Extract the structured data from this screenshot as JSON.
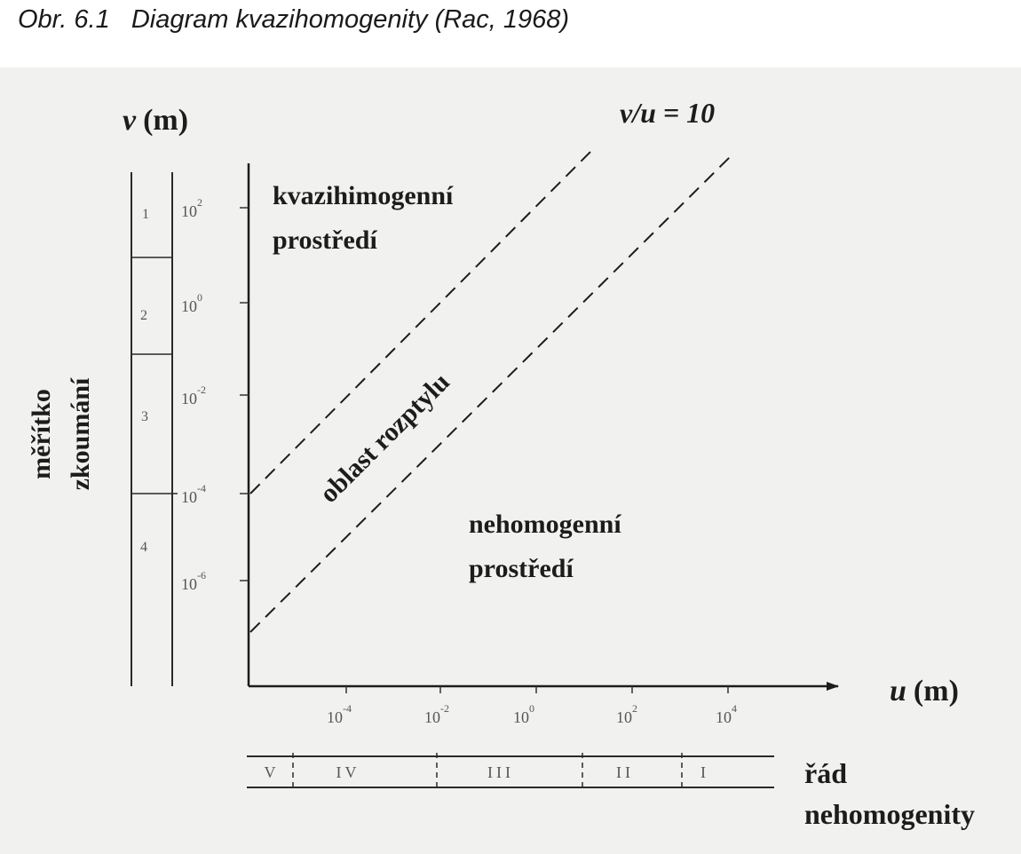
{
  "caption": "Obr. 6.1   Diagram kvazihomogenity (Rac, 1968)",
  "v_axis": {
    "symbol": "v",
    "unit": "(m)",
    "ticks": [
      "10",
      "10",
      "10",
      "10",
      "10"
    ],
    "exponents": [
      "2",
      "0",
      "-2",
      "-4",
      "-6"
    ]
  },
  "u_axis": {
    "symbol": "u",
    "unit": "(m)",
    "ticks": [
      "10",
      "10",
      "10",
      "10",
      "10"
    ],
    "exponents": [
      "-4",
      "-2",
      "0",
      "2",
      "4"
    ]
  },
  "side_label": {
    "line1": "měřítko",
    "line2": "zkoumání"
  },
  "scale_cells": [
    "1",
    "2",
    "3",
    "4"
  ],
  "ratio_label": "v/u = 10",
  "regions": {
    "quasi_line1": "kvazihimogenní",
    "quasi_line2": "prostředí",
    "scatter": "oblast rozptylu",
    "inhomo_line1": "nehomogenní",
    "inhomo_line2": "prostředí"
  },
  "order_cells": [
    "V",
    "IV",
    "III",
    "II",
    "I"
  ],
  "order_label": {
    "line1": "řád",
    "line2": "nehomogenity"
  }
}
